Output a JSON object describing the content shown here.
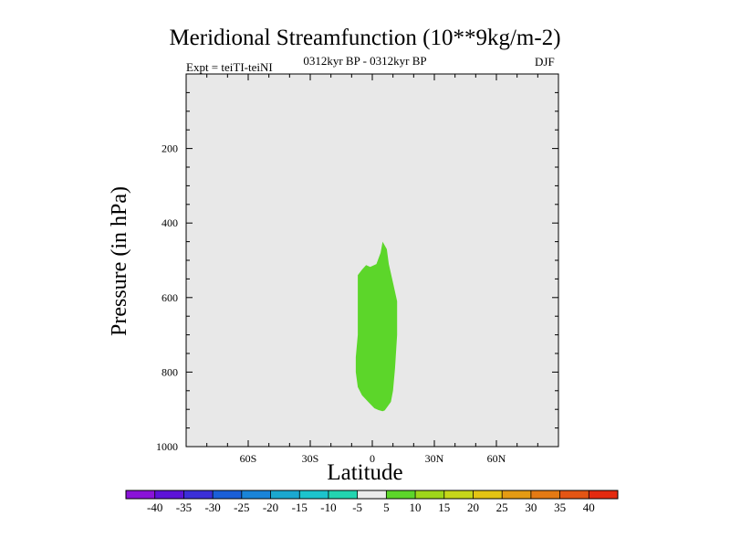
{
  "chart_data": {
    "type": "contour",
    "title": "Meridional Streamfunction (10**9kg/m-2)",
    "left_string": "Expt = teiTI-teiNI",
    "center_string": "0312kyr BP - 0312kyr BP",
    "right_string": "DJF",
    "xlabel": "Latitude",
    "ylabel": "Pressure (in hPa)",
    "xlim": [
      -90,
      90
    ],
    "ylim": [
      1000,
      0
    ],
    "x_ticks": [
      {
        "value": -60,
        "label": "60S"
      },
      {
        "value": -30,
        "label": "30S"
      },
      {
        "value": 0,
        "label": "0"
      },
      {
        "value": 30,
        "label": "30N"
      },
      {
        "value": 60,
        "label": "60N"
      }
    ],
    "y_ticks": [
      {
        "value": 200,
        "label": "200"
      },
      {
        "value": 400,
        "label": "400"
      },
      {
        "value": 600,
        "label": "600"
      },
      {
        "value": 800,
        "label": "800"
      },
      {
        "value": 1000,
        "label": "1000"
      }
    ],
    "filled_regions": [
      {
        "level_range": [
          5,
          10
        ],
        "color": "#5cd62a",
        "outline": [
          [
            5,
            450
          ],
          [
            7,
            470
          ],
          [
            8,
            510
          ],
          [
            10,
            560
          ],
          [
            12,
            610
          ],
          [
            12,
            700
          ],
          [
            11,
            790
          ],
          [
            10,
            850
          ],
          [
            9,
            880
          ],
          [
            7,
            895
          ],
          [
            6,
            903
          ],
          [
            5,
            905
          ],
          [
            3,
            902
          ],
          [
            1,
            897
          ],
          [
            -2,
            880
          ],
          [
            -5,
            862
          ],
          [
            -7,
            840
          ],
          [
            -8,
            800
          ],
          [
            -8,
            760
          ],
          [
            -7,
            700
          ],
          [
            -7,
            630
          ],
          [
            -7,
            570
          ],
          [
            -7,
            540
          ],
          [
            -5,
            525
          ],
          [
            -3,
            513
          ],
          [
            -1,
            518
          ],
          [
            2,
            510
          ],
          [
            4,
            480
          ]
        ]
      }
    ],
    "colorbar": {
      "labels": [
        "-40",
        "-35",
        "-30",
        "-25",
        "-20",
        "-15",
        "-10",
        "-5",
        "5",
        "10",
        "15",
        "20",
        "25",
        "30",
        "35",
        "40"
      ],
      "colors": [
        "#8a13d8",
        "#5d13d8",
        "#3b2fd8",
        "#1a5fd8",
        "#1a84d8",
        "#1ba8d0",
        "#1cc4cc",
        "#22d4b0",
        "#ebebeb",
        "#5cd62a",
        "#9ed61a",
        "#c6d61a",
        "#e4c414",
        "#e49b14",
        "#e47a14",
        "#e45514",
        "#e42a0f"
      ]
    },
    "background_color": "#e8e8e8"
  }
}
